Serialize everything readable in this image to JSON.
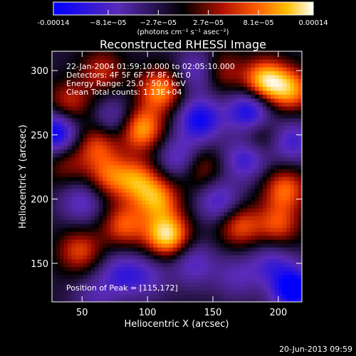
{
  "chart_data": {
    "type": "heatmap",
    "title": "Reconstructed RHESSI Image",
    "xlabel": "Heliocentric X (arcsec)",
    "ylabel": "Heliocentric Y (arcsec)",
    "xlim": [
      27,
      218
    ],
    "ylim": [
      120,
      315
    ],
    "x_ticks": [
      50,
      100,
      150,
      200
    ],
    "y_ticks": [
      150,
      200,
      250,
      300
    ],
    "colorbar": {
      "range": [
        -0.00014,
        0.00014
      ],
      "tick_values": [
        -0.00014,
        -8.1e-05,
        -2.7e-05,
        2.7e-05,
        8.1e-05,
        0.00014
      ],
      "tick_labels": [
        "-0.00014",
        "−8.1e−05",
        "−2.7e−05",
        "2.7e−05",
        "8.1e−05",
        "0.00014"
      ],
      "unit_label": "(photons cm⁻² s⁻¹ asec⁻²)"
    },
    "annotations": [
      "22-Jan-2004 01:59:10.000 to 02:05:10.000",
      "Detectors: 4F 5F 6F 7F 8F, Att 0",
      "Energy Range: 25.0 - 50.0 keV",
      "Clean    Total counts: 1.13E+04"
    ],
    "peak_label": "Position of Peak = [115,172]",
    "peak": [
      115,
      172
    ],
    "blobs": [
      {
        "x": 115,
        "y": 172,
        "a": 1.0
      },
      {
        "x": 108,
        "y": 200,
        "a": 0.7
      },
      {
        "x": 92,
        "y": 215,
        "a": 0.65
      },
      {
        "x": 70,
        "y": 218,
        "a": 0.55
      },
      {
        "x": 82,
        "y": 180,
        "a": 0.6
      },
      {
        "x": 48,
        "y": 160,
        "a": 0.55
      },
      {
        "x": 38,
        "y": 228,
        "a": 0.35
      },
      {
        "x": 62,
        "y": 243,
        "a": 0.55
      },
      {
        "x": 95,
        "y": 255,
        "a": 0.85
      },
      {
        "x": 110,
        "y": 285,
        "a": 0.75
      },
      {
        "x": 40,
        "y": 275,
        "a": 0.5
      },
      {
        "x": 65,
        "y": 300,
        "a": 0.45
      },
      {
        "x": 140,
        "y": 225,
        "a": 0.45
      },
      {
        "x": 170,
        "y": 180,
        "a": 0.6
      },
      {
        "x": 200,
        "y": 180,
        "a": 0.55
      },
      {
        "x": 205,
        "y": 208,
        "a": 0.65
      },
      {
        "x": 185,
        "y": 250,
        "a": 0.4
      },
      {
        "x": 190,
        "y": 292,
        "a": 0.95
      },
      {
        "x": 210,
        "y": 285,
        "a": 0.7
      },
      {
        "x": 155,
        "y": 300,
        "a": 0.5
      },
      {
        "x": 140,
        "y": 262,
        "a": -0.8
      },
      {
        "x": 125,
        "y": 232,
        "a": -0.55
      },
      {
        "x": 178,
        "y": 268,
        "a": -0.85
      },
      {
        "x": 175,
        "y": 232,
        "a": -0.6
      },
      {
        "x": 155,
        "y": 198,
        "a": -0.55
      },
      {
        "x": 135,
        "y": 150,
        "a": -0.45
      },
      {
        "x": 168,
        "y": 140,
        "a": -0.35
      },
      {
        "x": 195,
        "y": 150,
        "a": -0.45
      },
      {
        "x": 212,
        "y": 130,
        "a": -1.0
      },
      {
        "x": 30,
        "y": 252,
        "a": -0.9
      },
      {
        "x": 50,
        "y": 198,
        "a": -0.45
      },
      {
        "x": 75,
        "y": 262,
        "a": -0.45
      },
      {
        "x": 80,
        "y": 142,
        "a": -0.5
      },
      {
        "x": 100,
        "y": 140,
        "a": -0.35
      },
      {
        "x": 140,
        "y": 300,
        "a": -0.55
      },
      {
        "x": 210,
        "y": 245,
        "a": -0.55
      },
      {
        "x": 60,
        "y": 125,
        "a": -0.3
      }
    ]
  },
  "footer": {
    "timestamp": "20-Jun-2013 09:59"
  }
}
